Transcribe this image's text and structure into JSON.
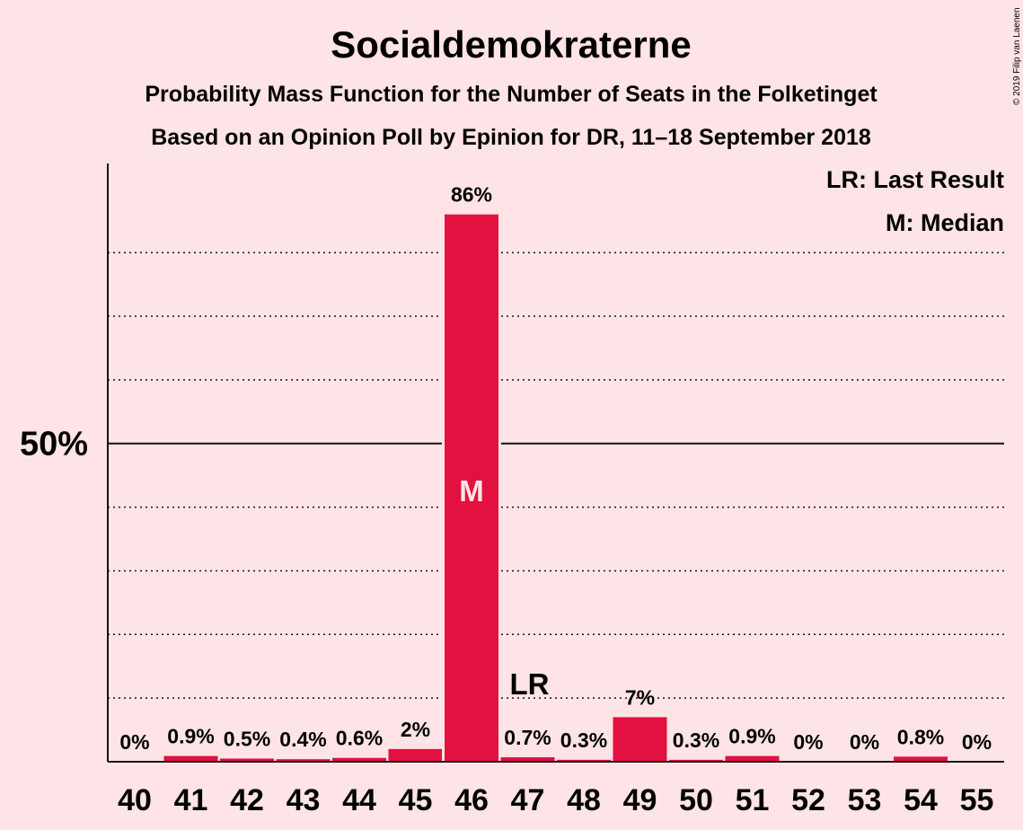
{
  "chart_data": {
    "type": "bar",
    "title": "Socialdemokraterne",
    "subtitle": "Probability Mass Function for the Number of Seats in the Folketinget",
    "subtitle2": "Based on an Opinion Poll by Epinion for DR, 11–18 September 2018",
    "credit": "© 2019 Filip van Laenen",
    "legend": {
      "lr": "LR: Last Result",
      "m": "M: Median",
      "placement": "top-right"
    },
    "categories": [
      "40",
      "41",
      "42",
      "43",
      "44",
      "45",
      "46",
      "47",
      "48",
      "49",
      "50",
      "51",
      "52",
      "53",
      "54",
      "55"
    ],
    "values": [
      0,
      0.9,
      0.5,
      0.4,
      0.6,
      2,
      86,
      0.7,
      0.3,
      7,
      0.3,
      0.9,
      0,
      0,
      0.8,
      0
    ],
    "labels": [
      "0%",
      "0.9%",
      "0.5%",
      "0.4%",
      "0.6%",
      "2%",
      "86%",
      "0.7%",
      "0.3%",
      "7%",
      "0.3%",
      "0.9%",
      "0%",
      "0%",
      "0.8%",
      "0%"
    ],
    "ylim": [
      0,
      94
    ],
    "ytick_label": "50%",
    "ytick_value": 50,
    "gridlines": [
      10,
      20,
      30,
      40,
      60,
      70,
      80
    ],
    "median": {
      "category": "46",
      "label": "M"
    },
    "last_result": {
      "category": "47",
      "label": "LR"
    },
    "bar_color": "#e3113f",
    "background": "#fee4e6"
  }
}
